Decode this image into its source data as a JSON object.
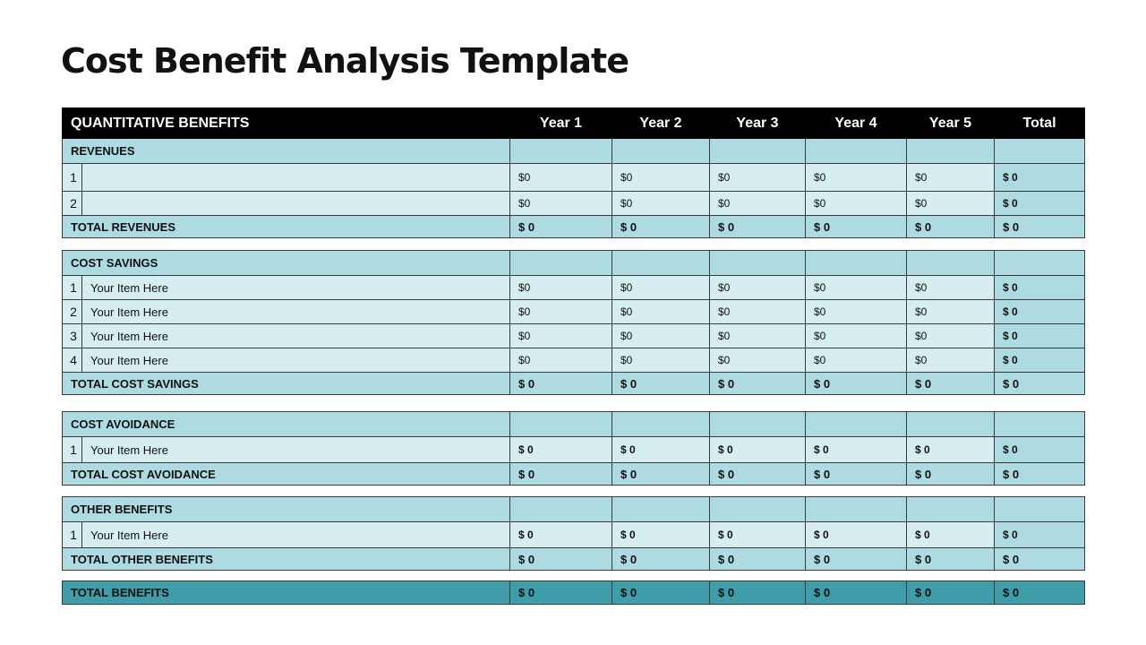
{
  "title": "Cost Benefit Analysis Template",
  "header": {
    "label": "QUANTITATIVE BENEFITS",
    "columns": [
      "Year 1",
      "Year 2",
      "Year 3",
      "Year 4",
      "Year 5",
      "Total"
    ]
  },
  "revenues": {
    "label": "REVENUES",
    "rows": [
      {
        "num": "1",
        "item": "",
        "values": [
          "$0",
          "$0",
          "$0",
          "$0",
          "$0"
        ],
        "total": "$ 0"
      },
      {
        "num": "2",
        "item": "",
        "values": [
          "$0",
          "$0",
          "$0",
          "$0",
          "$0"
        ],
        "total": "$ 0"
      }
    ],
    "total_label": "TOTAL REVENUES",
    "totals": [
      "$ 0",
      "$ 0",
      "$ 0",
      "$ 0",
      "$ 0",
      "$ 0"
    ]
  },
  "cost_savings": {
    "label": "COST SAVINGS",
    "rows": [
      {
        "num": "1",
        "item": "Your Item Here",
        "values": [
          "$0",
          "$0",
          "$0",
          "$0",
          "$0"
        ],
        "total": "$ 0"
      },
      {
        "num": "2",
        "item": "Your Item Here",
        "values": [
          "$0",
          "$0",
          "$0",
          "$0",
          "$0"
        ],
        "total": "$ 0"
      },
      {
        "num": "3",
        "item": "Your Item Here",
        "values": [
          "$0",
          "$0",
          "$0",
          "$0",
          "$0"
        ],
        "total": "$ 0"
      },
      {
        "num": "4",
        "item": "Your Item Here",
        "values": [
          "$0",
          "$0",
          "$0",
          "$0",
          "$0"
        ],
        "total": "$ 0"
      }
    ],
    "total_label": "TOTAL COST SAVINGS",
    "totals": [
      "$ 0",
      "$ 0",
      "$ 0",
      "$ 0",
      "$ 0",
      "$ 0"
    ]
  },
  "cost_avoidance": {
    "label": "COST AVOIDANCE",
    "rows": [
      {
        "num": "1",
        "item": "Your Item Here",
        "values": [
          "$ 0",
          "$ 0",
          "$ 0",
          "$ 0",
          "$ 0"
        ],
        "total": "$ 0"
      }
    ],
    "total_label": "TOTAL COST AVOIDANCE",
    "totals": [
      "$ 0",
      "$ 0",
      "$ 0",
      "$ 0",
      "$ 0",
      "$ 0"
    ]
  },
  "other_benefits": {
    "label": "OTHER BENEFITS",
    "rows": [
      {
        "num": "1",
        "item": "Your Item Here",
        "values": [
          "$ 0",
          "$ 0",
          "$ 0",
          "$ 0",
          "$ 0"
        ],
        "total": "$ 0"
      }
    ],
    "total_label": "TOTAL OTHER BENEFITS",
    "totals": [
      "$ 0",
      "$ 0",
      "$ 0",
      "$ 0",
      "$ 0",
      "$ 0"
    ]
  },
  "total_benefits": {
    "label": "TOTAL BENEFITS",
    "totals": [
      "$ 0",
      "$ 0",
      "$ 0",
      "$ 0",
      "$ 0",
      "$ 0"
    ]
  },
  "colors": {
    "header": "#000000",
    "section": "#aedbe1",
    "row": "#d7eef0",
    "grand_total": "#3e9da8"
  }
}
